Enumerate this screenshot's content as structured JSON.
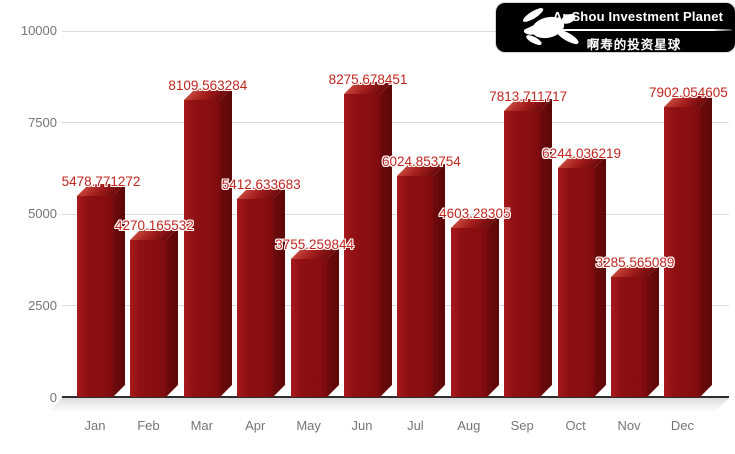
{
  "logo": {
    "title": "Ar Shou Investment Planet",
    "subtitle": "啊寿的投资星球",
    "icon": "turtle-icon",
    "bg_color": "#000000",
    "text_color": "#ffffff"
  },
  "chart_data": {
    "type": "bar",
    "style": "3d-columns",
    "title": "",
    "xlabel": "",
    "ylabel": "",
    "categories": [
      "Jan",
      "Feb",
      "Mar",
      "Apr",
      "May",
      "Jun",
      "Jul",
      "Aug",
      "Sep",
      "Oct",
      "Nov",
      "Dec"
    ],
    "values": [
      5478.771272,
      4270.165532,
      8109.563284,
      5412.633683,
      3755.259844,
      8275.678451,
      6024.853754,
      4603.28305,
      7813.711717,
      6244.036219,
      3285.565089,
      7902.054605
    ],
    "data_labels": [
      "5478.771272",
      "4270.165532",
      "8109.563284",
      "5412.633683",
      "3755.259844",
      "8275.678451",
      "6024.853754",
      "4603.28305",
      "7813.711717",
      "6244.036219",
      "3285.565089",
      "7902.054605"
    ],
    "ylim": [
      0,
      10000
    ],
    "yticks": [
      0,
      2500,
      5000,
      7500,
      10000
    ],
    "grid": true,
    "legend": "none",
    "colors": {
      "bar_front": "#8E1013",
      "bar_side": "#620809",
      "bar_top_light": "#C4453A",
      "bar_top_dark": "#6E0A0C",
      "value_label": "#C1251E",
      "axis_text": "#757575",
      "gridline": "#DADADA",
      "baseline": "#2E2E2E",
      "floor": "#DCDCDC",
      "background": "#FFFFFF"
    }
  }
}
